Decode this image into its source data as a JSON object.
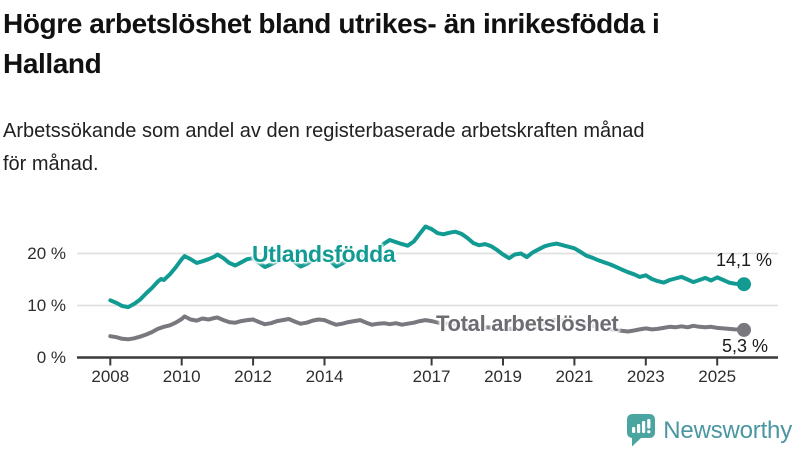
{
  "header": {
    "title_lines": [
      "Högre arbetslöshet bland utrikes- än inrikesfödda i",
      "Halland"
    ],
    "subtitle_lines": [
      "Arbetssökande som andel av den registerbaserade arbetskraften månad",
      "för månad."
    ]
  },
  "colors": {
    "series_foreign": "#129B93",
    "series_total": "#7A787F",
    "total_label_text": "#6E6C73",
    "axis": "#3A3A3A",
    "gridline": "#E0E0E0",
    "text": "#1A1A1A",
    "logo_icon": "#4AA49F",
    "logo_text": "#4A96A1"
  },
  "chart_data": {
    "type": "line",
    "title": "Högre arbetslöshet bland utrikes- än inrikesfödda i Halland",
    "subtitle": "Arbetssökande som andel av den registerbaserade arbetskraften månad för månad.",
    "unit": "%",
    "x_range": [
      2008,
      2025.75
    ],
    "ylim": [
      0,
      26
    ],
    "grid": "horizontal",
    "legend_position": "inline-labels",
    "yticks": [
      {
        "value": 0,
        "label": "0 %"
      },
      {
        "value": 10,
        "label": "10 %"
      },
      {
        "value": 20,
        "label": "20 %"
      }
    ],
    "xticks": [
      {
        "value": 2008,
        "label": "2008"
      },
      {
        "value": 2010,
        "label": "2010"
      },
      {
        "value": 2012,
        "label": "2012"
      },
      {
        "value": 2014,
        "label": "2014"
      },
      {
        "value": 2017,
        "label": "2017"
      },
      {
        "value": 2019,
        "label": "2019"
      },
      {
        "value": 2021,
        "label": "2021"
      },
      {
        "value": 2023,
        "label": "2023"
      },
      {
        "value": 2025,
        "label": "2025"
      }
    ],
    "series": [
      {
        "id": "utlandsfodda",
        "name": "Utlandsfödda",
        "color": "#129B93",
        "end_value": 14.1,
        "end_label": "14,1 %",
        "points": [
          [
            2008.0,
            11.0
          ],
          [
            2008.17,
            10.5
          ],
          [
            2008.33,
            9.9
          ],
          [
            2008.5,
            9.7
          ],
          [
            2008.67,
            10.3
          ],
          [
            2008.83,
            11.1
          ],
          [
            2009.0,
            12.3
          ],
          [
            2009.17,
            13.4
          ],
          [
            2009.33,
            14.6
          ],
          [
            2009.42,
            15.1
          ],
          [
            2009.5,
            14.9
          ],
          [
            2009.67,
            16.0
          ],
          [
            2009.83,
            17.3
          ],
          [
            2010.0,
            18.9
          ],
          [
            2010.08,
            19.5
          ],
          [
            2010.25,
            18.9
          ],
          [
            2010.42,
            18.2
          ],
          [
            2010.58,
            18.5
          ],
          [
            2010.75,
            18.9
          ],
          [
            2010.92,
            19.4
          ],
          [
            2011.0,
            19.8
          ],
          [
            2011.17,
            19.1
          ],
          [
            2011.33,
            18.2
          ],
          [
            2011.5,
            17.7
          ],
          [
            2011.67,
            18.3
          ],
          [
            2011.83,
            18.9
          ],
          [
            2012.0,
            19.1
          ],
          [
            2012.17,
            18.2
          ],
          [
            2012.33,
            17.4
          ],
          [
            2012.5,
            17.9
          ],
          [
            2012.67,
            18.5
          ],
          [
            2012.83,
            19.0
          ],
          [
            2013.0,
            19.2
          ],
          [
            2013.17,
            18.3
          ],
          [
            2013.33,
            17.5
          ],
          [
            2013.5,
            18.0
          ],
          [
            2013.67,
            18.7
          ],
          [
            2013.83,
            19.3
          ],
          [
            2014.0,
            19.5
          ],
          [
            2014.17,
            18.5
          ],
          [
            2014.33,
            17.5
          ],
          [
            2014.5,
            18.1
          ],
          [
            2014.67,
            18.8
          ],
          [
            2014.83,
            19.4
          ],
          [
            2015.0,
            19.8
          ],
          [
            2015.17,
            19.2
          ],
          [
            2015.33,
            19.9
          ],
          [
            2015.5,
            20.8
          ],
          [
            2015.67,
            21.9
          ],
          [
            2015.83,
            22.6
          ],
          [
            2016.0,
            22.2
          ],
          [
            2016.17,
            21.8
          ],
          [
            2016.33,
            21.5
          ],
          [
            2016.5,
            22.3
          ],
          [
            2016.67,
            23.8
          ],
          [
            2016.83,
            25.2
          ],
          [
            2017.0,
            24.7
          ],
          [
            2017.17,
            23.9
          ],
          [
            2017.33,
            23.7
          ],
          [
            2017.5,
            24.0
          ],
          [
            2017.67,
            24.2
          ],
          [
            2017.83,
            23.8
          ],
          [
            2018.0,
            23.0
          ],
          [
            2018.17,
            22.0
          ],
          [
            2018.33,
            21.6
          ],
          [
            2018.5,
            21.8
          ],
          [
            2018.67,
            21.4
          ],
          [
            2018.83,
            20.7
          ],
          [
            2019.0,
            19.8
          ],
          [
            2019.17,
            19.1
          ],
          [
            2019.33,
            19.8
          ],
          [
            2019.5,
            20.0
          ],
          [
            2019.67,
            19.3
          ],
          [
            2019.83,
            20.2
          ],
          [
            2020.0,
            20.8
          ],
          [
            2020.17,
            21.4
          ],
          [
            2020.33,
            21.7
          ],
          [
            2020.5,
            21.9
          ],
          [
            2020.67,
            21.6
          ],
          [
            2020.83,
            21.3
          ],
          [
            2021.0,
            21.0
          ],
          [
            2021.17,
            20.3
          ],
          [
            2021.33,
            19.6
          ],
          [
            2021.5,
            19.2
          ],
          [
            2021.67,
            18.7
          ],
          [
            2021.83,
            18.3
          ],
          [
            2022.0,
            17.9
          ],
          [
            2022.17,
            17.4
          ],
          [
            2022.33,
            16.9
          ],
          [
            2022.5,
            16.4
          ],
          [
            2022.67,
            16.0
          ],
          [
            2022.83,
            15.5
          ],
          [
            2023.0,
            15.8
          ],
          [
            2023.17,
            15.1
          ],
          [
            2023.33,
            14.7
          ],
          [
            2023.5,
            14.4
          ],
          [
            2023.67,
            14.9
          ],
          [
            2023.83,
            15.2
          ],
          [
            2024.0,
            15.5
          ],
          [
            2024.17,
            15.0
          ],
          [
            2024.33,
            14.5
          ],
          [
            2024.5,
            14.9
          ],
          [
            2024.67,
            15.3
          ],
          [
            2024.83,
            14.8
          ],
          [
            2025.0,
            15.4
          ],
          [
            2025.17,
            14.9
          ],
          [
            2025.33,
            14.4
          ],
          [
            2025.5,
            14.2
          ],
          [
            2025.75,
            14.1
          ]
        ]
      },
      {
        "id": "total",
        "name": "Total arbetslöshet",
        "color": "#7A787F",
        "end_value": 5.3,
        "end_label": "5,3 %",
        "points": [
          [
            2008.0,
            4.1
          ],
          [
            2008.17,
            3.9
          ],
          [
            2008.33,
            3.6
          ],
          [
            2008.5,
            3.5
          ],
          [
            2008.67,
            3.7
          ],
          [
            2008.83,
            4.0
          ],
          [
            2009.0,
            4.4
          ],
          [
            2009.17,
            4.9
          ],
          [
            2009.33,
            5.5
          ],
          [
            2009.5,
            5.9
          ],
          [
            2009.67,
            6.2
          ],
          [
            2009.83,
            6.7
          ],
          [
            2010.0,
            7.4
          ],
          [
            2010.08,
            7.9
          ],
          [
            2010.25,
            7.3
          ],
          [
            2010.42,
            7.1
          ],
          [
            2010.58,
            7.5
          ],
          [
            2010.75,
            7.3
          ],
          [
            2010.92,
            7.6
          ],
          [
            2011.0,
            7.7
          ],
          [
            2011.17,
            7.2
          ],
          [
            2011.33,
            6.8
          ],
          [
            2011.5,
            6.7
          ],
          [
            2011.67,
            7.0
          ],
          [
            2011.83,
            7.2
          ],
          [
            2012.0,
            7.3
          ],
          [
            2012.17,
            6.8
          ],
          [
            2012.33,
            6.4
          ],
          [
            2012.5,
            6.6
          ],
          [
            2012.67,
            7.0
          ],
          [
            2012.83,
            7.2
          ],
          [
            2013.0,
            7.4
          ],
          [
            2013.17,
            6.9
          ],
          [
            2013.33,
            6.5
          ],
          [
            2013.5,
            6.7
          ],
          [
            2013.67,
            7.1
          ],
          [
            2013.83,
            7.3
          ],
          [
            2014.0,
            7.2
          ],
          [
            2014.17,
            6.7
          ],
          [
            2014.33,
            6.3
          ],
          [
            2014.5,
            6.5
          ],
          [
            2014.67,
            6.8
          ],
          [
            2014.83,
            7.0
          ],
          [
            2015.0,
            7.2
          ],
          [
            2015.17,
            6.7
          ],
          [
            2015.33,
            6.3
          ],
          [
            2015.5,
            6.5
          ],
          [
            2015.67,
            6.6
          ],
          [
            2015.83,
            6.4
          ],
          [
            2016.0,
            6.6
          ],
          [
            2016.17,
            6.3
          ],
          [
            2016.33,
            6.5
          ],
          [
            2016.5,
            6.7
          ],
          [
            2016.67,
            7.0
          ],
          [
            2016.83,
            7.2
          ],
          [
            2017.0,
            7.0
          ],
          [
            2017.25,
            6.6
          ],
          [
            2017.5,
            6.5
          ],
          [
            2017.75,
            6.3
          ],
          [
            2018.0,
            6.2
          ],
          [
            2018.25,
            5.9
          ],
          [
            2018.5,
            5.8
          ],
          [
            2018.75,
            5.7
          ],
          [
            2019.0,
            5.6
          ],
          [
            2019.25,
            5.5
          ],
          [
            2019.5,
            5.6
          ],
          [
            2019.75,
            5.8
          ],
          [
            2020.0,
            6.0
          ],
          [
            2020.25,
            6.8
          ],
          [
            2020.5,
            7.3
          ],
          [
            2020.75,
            7.1
          ],
          [
            2021.0,
            6.9
          ],
          [
            2021.25,
            6.4
          ],
          [
            2021.5,
            6.1
          ],
          [
            2021.75,
            5.8
          ],
          [
            2022.0,
            5.5
          ],
          [
            2022.25,
            5.2
          ],
          [
            2022.5,
            5.0
          ],
          [
            2022.67,
            5.2
          ],
          [
            2022.83,
            5.4
          ],
          [
            2023.0,
            5.6
          ],
          [
            2023.17,
            5.4
          ],
          [
            2023.33,
            5.5
          ],
          [
            2023.5,
            5.7
          ],
          [
            2023.67,
            5.9
          ],
          [
            2023.83,
            5.8
          ],
          [
            2024.0,
            6.0
          ],
          [
            2024.17,
            5.8
          ],
          [
            2024.33,
            6.1
          ],
          [
            2024.5,
            5.9
          ],
          [
            2024.67,
            5.8
          ],
          [
            2024.83,
            5.9
          ],
          [
            2025.0,
            5.7
          ],
          [
            2025.17,
            5.6
          ],
          [
            2025.33,
            5.5
          ],
          [
            2025.5,
            5.4
          ],
          [
            2025.75,
            5.3
          ]
        ]
      }
    ]
  },
  "footer": {
    "brand": "Newsworthy"
  }
}
